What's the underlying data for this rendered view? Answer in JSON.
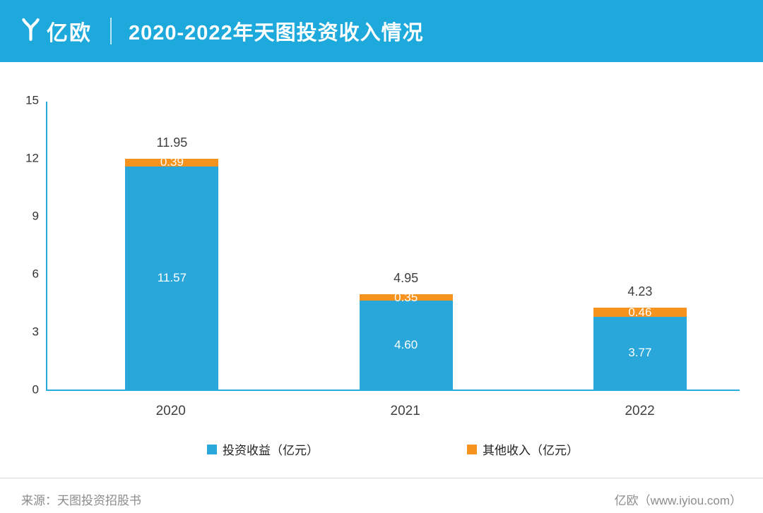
{
  "header": {
    "logo_text": "亿欧",
    "title": "2020-2022年天图投资收入情况",
    "accent_color": "#1ea9dc"
  },
  "chart_data": {
    "type": "bar",
    "stacked": true,
    "title": "2020-2022年天图投资收入情况",
    "categories": [
      "2020",
      "2021",
      "2022"
    ],
    "series": [
      {
        "name": "投资收益（亿元）",
        "color": "#29a7db",
        "values": [
          11.57,
          4.6,
          3.77
        ]
      },
      {
        "name": "其他收入（亿元）",
        "color": "#f6921e",
        "values": [
          0.39,
          0.35,
          0.46
        ]
      }
    ],
    "totals": [
      11.95,
      4.95,
      4.23
    ],
    "labels": {
      "totals": [
        "11.95",
        "4.95",
        "4.23"
      ],
      "investment": [
        "11.57",
        "4.60",
        "3.77"
      ],
      "other": [
        "0.39",
        "0.35",
        "0.46"
      ]
    },
    "y_ticks": [
      0,
      3,
      6,
      9,
      12,
      15
    ],
    "ylim": [
      0,
      15
    ],
    "xlabel": "",
    "ylabel": "",
    "grid": false,
    "legend_position": "bottom",
    "axis_color": "#2aa9dc"
  },
  "footer": {
    "source": "来源：天图投资招股书",
    "site": "亿欧（www.iyiou.com）"
  }
}
